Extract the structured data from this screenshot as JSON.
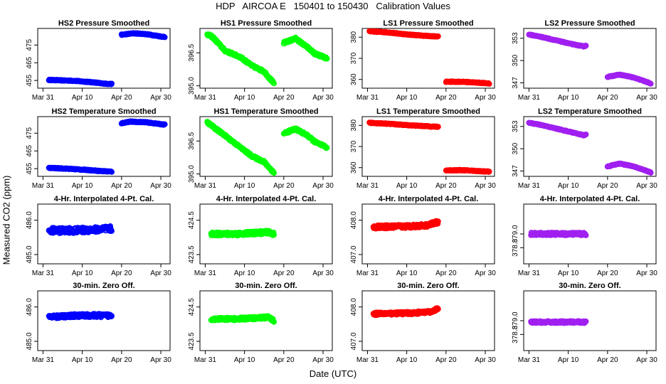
{
  "page": {
    "title": "HDP   AIRCOA E   150401 to 150430   Calibration Values",
    "ylabel": "Measured CO2 (ppm)",
    "xlabel": "Date (UTC)"
  },
  "colors": {
    "HS2": "#0000ff",
    "HS1": "#00ff00",
    "LS1": "#ff0000",
    "LS2": "#a020f0"
  },
  "chart_data": {
    "type": "scatter",
    "x_unit": "day of April 2015 (0 = Mar 31)",
    "x_range": [
      0,
      31
    ],
    "x_ticks": [
      {
        "value": 0,
        "label": "Mar 31"
      },
      {
        "value": 10,
        "label": "Apr 10"
      },
      {
        "value": 20,
        "label": "Apr 20"
      },
      {
        "value": 30,
        "label": "Apr 30"
      }
    ],
    "panels": [
      {
        "row": 0,
        "col": 0,
        "title": "HS2 Pressure Smoothed",
        "series": "HS2",
        "ylim": [
          452,
          483
        ],
        "yticks": [
          {
            "v": 455,
            "l": "455"
          },
          {
            "v": 465,
            "l": "465"
          },
          {
            "v": 475,
            "l": "475"
          }
        ],
        "segments": [
          {
            "points": [
              [
                1.5,
                455.3
              ],
              [
                8,
                454.8
              ],
              [
                13,
                453.9
              ],
              [
                15,
                453.3
              ],
              [
                17.5,
                453.0
              ]
            ],
            "noise": 0.25
          },
          {
            "points": [
              [
                20,
                480.8
              ],
              [
                23,
                481.6
              ],
              [
                26,
                481.2
              ],
              [
                31,
                479.5
              ]
            ],
            "noise": 0.25
          }
        ]
      },
      {
        "row": 0,
        "col": 1,
        "title": "HS1 Pressure Smoothed",
        "series": "HS1",
        "ylim": [
          395.0,
          397.5
        ],
        "yticks": [
          {
            "v": 395.0,
            "l": "395.0"
          },
          {
            "v": 396.5,
            "l": "396.5"
          }
        ],
        "segments": [
          {
            "points": [
              [
                0.5,
                397.35
              ],
              [
                2,
                397.2
              ],
              [
                5,
                396.6
              ],
              [
                9,
                396.3
              ],
              [
                12,
                395.9
              ],
              [
                15,
                395.65
              ],
              [
                17.5,
                395.1
              ]
            ],
            "noise": 0.05
          },
          {
            "points": [
              [
                20,
                396.95
              ],
              [
                23,
                397.15
              ],
              [
                26,
                396.75
              ],
              [
                28,
                396.45
              ],
              [
                31,
                396.25
              ]
            ],
            "noise": 0.05
          }
        ]
      },
      {
        "row": 0,
        "col": 2,
        "title": "LS1 Pressure Smoothed",
        "series": "LS1",
        "ylim": [
          357,
          383
        ],
        "yticks": [
          {
            "v": 360,
            "l": "360"
          },
          {
            "v": 370,
            "l": "370"
          },
          {
            "v": 380,
            "l": "380"
          }
        ],
        "segments": [
          {
            "points": [
              [
                0.5,
                382.8
              ],
              [
                5,
                382.3
              ],
              [
                10,
                381.3
              ],
              [
                15,
                380.6
              ],
              [
                18,
                380.3
              ]
            ],
            "noise": 0.2
          },
          {
            "points": [
              [
                20,
                358.9
              ],
              [
                24,
                358.9
              ],
              [
                28,
                358.5
              ],
              [
                31,
                358.1
              ]
            ],
            "noise": 0.2
          }
        ]
      },
      {
        "row": 0,
        "col": 3,
        "title": "LS2 Pressure Smoothed",
        "series": "LS2",
        "ylim": [
          346.6,
          354.0
        ],
        "yticks": [
          {
            "v": 347,
            "l": "347"
          },
          {
            "v": 350,
            "l": "350"
          },
          {
            "v": 353,
            "l": "353"
          }
        ],
        "segments": [
          {
            "points": [
              [
                0,
                353.5
              ],
              [
                3,
                353.2
              ],
              [
                7,
                352.7
              ],
              [
                11,
                352.2
              ],
              [
                14,
                351.9
              ],
              [
                14.5,
                352.0
              ]
            ],
            "noise": 0.05
          },
          {
            "points": [
              [
                20,
                347.8
              ],
              [
                23,
                348.1
              ],
              [
                26,
                347.8
              ],
              [
                29,
                347.3
              ],
              [
                31,
                346.9
              ]
            ],
            "noise": 0.05
          }
        ]
      },
      {
        "row": 1,
        "col": 0,
        "title": "HS2 Temperature Smoothed",
        "series": "HS2",
        "ylim": [
          452,
          483
        ],
        "yticks": [
          {
            "v": 455,
            "l": "455"
          },
          {
            "v": 465,
            "l": "465"
          },
          {
            "v": 475,
            "l": "475"
          }
        ],
        "segments": [
          {
            "points": [
              [
                1.5,
                455.4
              ],
              [
                6,
                455.0
              ],
              [
                11,
                454.3
              ],
              [
                15,
                453.6
              ],
              [
                17.5,
                453.3
              ]
            ],
            "noise": 0.25
          },
          {
            "points": [
              [
                20,
                480.6
              ],
              [
                22,
                481.5
              ],
              [
                26,
                481.2
              ],
              [
                31,
                479.8
              ]
            ],
            "noise": 0.25
          }
        ]
      },
      {
        "row": 1,
        "col": 1,
        "title": "HS1 Temperature Smoothed",
        "series": "HS1",
        "ylim": [
          395.0,
          397.5
        ],
        "yticks": [
          {
            "v": 395.0,
            "l": "395.0"
          },
          {
            "v": 396.5,
            "l": "396.5"
          }
        ],
        "segments": [
          {
            "points": [
              [
                0.5,
                397.35
              ],
              [
                2,
                397.15
              ],
              [
                5,
                396.75
              ],
              [
                9,
                396.2
              ],
              [
                12,
                395.8
              ],
              [
                15,
                395.55
              ],
              [
                17.5,
                395.05
              ]
            ],
            "noise": 0.05
          },
          {
            "points": [
              [
                20,
                396.85
              ],
              [
                23,
                397.05
              ],
              [
                26,
                396.75
              ],
              [
                28,
                396.45
              ],
              [
                31,
                396.2
              ]
            ],
            "noise": 0.05
          }
        ]
      },
      {
        "row": 1,
        "col": 2,
        "title": "LS1 Temperature Smoothed",
        "series": "LS1",
        "ylim": [
          357,
          383
        ],
        "yticks": [
          {
            "v": 360,
            "l": "360"
          },
          {
            "v": 370,
            "l": "370"
          },
          {
            "v": 380,
            "l": "380"
          }
        ],
        "segments": [
          {
            "points": [
              [
                0.5,
                381.2
              ],
              [
                5,
                380.8
              ],
              [
                10,
                380.1
              ],
              [
                15,
                379.6
              ],
              [
                18,
                379.3
              ]
            ],
            "noise": 0.2
          },
          {
            "points": [
              [
                20,
                358.7
              ],
              [
                24,
                358.8
              ],
              [
                28,
                358.4
              ],
              [
                31,
                358.1
              ]
            ],
            "noise": 0.2
          }
        ]
      },
      {
        "row": 1,
        "col": 3,
        "title": "LS2 Temperature Smoothed",
        "series": "LS2",
        "ylim": [
          346.6,
          354.0
        ],
        "yticks": [
          {
            "v": 347,
            "l": "347"
          },
          {
            "v": 350,
            "l": "350"
          },
          {
            "v": 353,
            "l": "353"
          }
        ],
        "segments": [
          {
            "points": [
              [
                0,
                353.5
              ],
              [
                3,
                353.2
              ],
              [
                7,
                352.7
              ],
              [
                11,
                352.2
              ],
              [
                14,
                351.8
              ],
              [
                14.5,
                351.9
              ]
            ],
            "noise": 0.05
          },
          {
            "points": [
              [
                20,
                347.6
              ],
              [
                23,
                348.0
              ],
              [
                26,
                347.7
              ],
              [
                29,
                347.2
              ],
              [
                31,
                346.8
              ]
            ],
            "noise": 0.05
          }
        ]
      },
      {
        "row": 2,
        "col": 0,
        "title": "4-Hr. Interpolated 4-Pt. Cal.",
        "series": "HS2",
        "ylim": [
          484.8,
          486.4
        ],
        "yticks": [
          {
            "v": 485.0,
            "l": "485.0"
          },
          {
            "v": 486.0,
            "l": "486.0"
          }
        ],
        "segments": [
          {
            "points": [
              [
                1.5,
                485.7
              ],
              [
                8,
                485.7
              ],
              [
                17.5,
                485.75
              ]
            ],
            "noise": 0.08
          }
        ]
      },
      {
        "row": 2,
        "col": 1,
        "title": "4-Hr. Interpolated 4-Pt. Cal.",
        "series": "HS1",
        "ylim": [
          423.3,
          424.9
        ],
        "yticks": [
          {
            "v": 423.5,
            "l": "423.5"
          },
          {
            "v": 424.5,
            "l": "424.5"
          }
        ],
        "segments": [
          {
            "points": [
              [
                1.5,
                424.1
              ],
              [
                8,
                424.1
              ],
              [
                16,
                424.15
              ],
              [
                17.5,
                424.1
              ]
            ],
            "noise": 0.05
          }
        ]
      },
      {
        "row": 2,
        "col": 2,
        "title": "4-Hr. Interpolated 4-Pt. Cal.",
        "series": "LS1",
        "ylim": [
          406.8,
          408.4
        ],
        "yticks": [
          {
            "v": 407.0,
            "l": "407.0"
          },
          {
            "v": 408.0,
            "l": "408.0"
          }
        ],
        "segments": [
          {
            "points": [
              [
                1.5,
                407.8
              ],
              [
                10,
                407.82
              ],
              [
                15,
                407.85
              ],
              [
                18,
                407.95
              ]
            ],
            "noise": 0.05
          }
        ]
      },
      {
        "row": 2,
        "col": 3,
        "title": "4-Hr. Interpolated 4-Pt. Cal.",
        "series": "LS2",
        "ylim": [
          378.6,
          379.4
        ],
        "yticks": [
          {
            "v": 378.8,
            "l": "378.8"
          },
          {
            "v": 379.0,
            "l": "379.0"
          }
        ],
        "segments": [
          {
            "points": [
              [
                0.5,
                379.0
              ],
              [
                8,
                379.0
              ],
              [
                14.5,
                379.0
              ]
            ],
            "noise": 0.02
          }
        ]
      },
      {
        "row": 3,
        "col": 0,
        "title": "30-min. Zero Off.",
        "series": "HS2",
        "ylim": [
          484.8,
          486.4
        ],
        "yticks": [
          {
            "v": 485.0,
            "l": "485.0"
          },
          {
            "v": 486.0,
            "l": "486.0"
          }
        ],
        "segments": [
          {
            "points": [
              [
                1.5,
                485.7
              ],
              [
                8,
                485.75
              ],
              [
                17.5,
                485.75
              ]
            ],
            "noise": 0.05
          }
        ]
      },
      {
        "row": 3,
        "col": 1,
        "title": "30-min. Zero Off.",
        "series": "HS1",
        "ylim": [
          423.3,
          424.9
        ],
        "yticks": [
          {
            "v": 423.5,
            "l": "423.5"
          },
          {
            "v": 424.5,
            "l": "424.5"
          }
        ],
        "segments": [
          {
            "points": [
              [
                1.5,
                424.15
              ],
              [
                8,
                424.15
              ],
              [
                16,
                424.2
              ],
              [
                17.5,
                424.1
              ]
            ],
            "noise": 0.04
          }
        ]
      },
      {
        "row": 3,
        "col": 2,
        "title": "30-min. Zero Off.",
        "series": "LS1",
        "ylim": [
          406.8,
          408.4
        ],
        "yticks": [
          {
            "v": 407.0,
            "l": "407.0"
          },
          {
            "v": 408.0,
            "l": "408.0"
          }
        ],
        "segments": [
          {
            "points": [
              [
                1.5,
                407.8
              ],
              [
                10,
                407.82
              ],
              [
                16,
                407.85
              ],
              [
                18,
                407.95
              ]
            ],
            "noise": 0.04
          }
        ]
      },
      {
        "row": 3,
        "col": 3,
        "title": "30-min. Zero Off.",
        "series": "LS2",
        "ylim": [
          378.6,
          379.4
        ],
        "yticks": [
          {
            "v": 378.8,
            "l": "378.8"
          },
          {
            "v": 379.0,
            "l": "379.0"
          }
        ],
        "segments": [
          {
            "points": [
              [
                0.5,
                378.98
              ],
              [
                8,
                378.98
              ],
              [
                14.5,
                378.98
              ]
            ],
            "noise": 0.015
          }
        ]
      }
    ]
  }
}
